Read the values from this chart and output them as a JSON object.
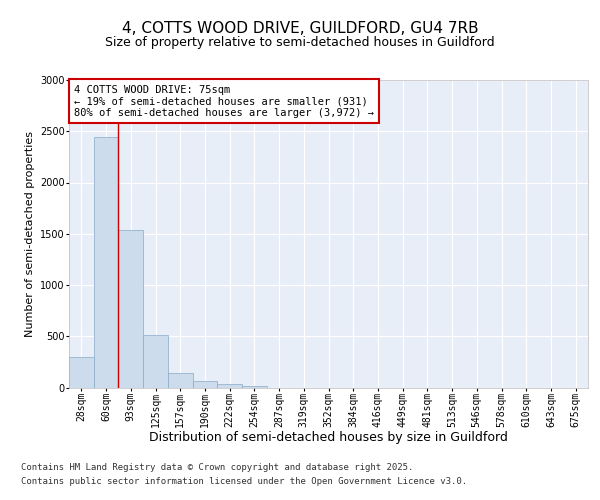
{
  "title_line1": "4, COTTS WOOD DRIVE, GUILDFORD, GU4 7RB",
  "title_line2": "Size of property relative to semi-detached houses in Guildford",
  "xlabel": "Distribution of semi-detached houses by size in Guildford",
  "ylabel": "Number of semi-detached properties",
  "categories": [
    "28sqm",
    "60sqm",
    "93sqm",
    "125sqm",
    "157sqm",
    "190sqm",
    "222sqm",
    "254sqm",
    "287sqm",
    "319sqm",
    "352sqm",
    "384sqm",
    "416sqm",
    "449sqm",
    "481sqm",
    "513sqm",
    "546sqm",
    "578sqm",
    "610sqm",
    "643sqm",
    "675sqm"
  ],
  "values": [
    300,
    2440,
    1540,
    510,
    140,
    60,
    30,
    10,
    0,
    0,
    0,
    0,
    0,
    0,
    0,
    0,
    0,
    0,
    0,
    0,
    0
  ],
  "bar_color": "#cddcec",
  "bar_edge_color": "#8aaac8",
  "vline_x": 1.5,
  "vline_color": "#cc0000",
  "annotation_text": "4 COTTS WOOD DRIVE: 75sqm\n← 19% of semi-detached houses are smaller (931)\n80% of semi-detached houses are larger (3,972) →",
  "annotation_box_facecolor": "white",
  "annotation_box_edgecolor": "#cc0000",
  "ylim": [
    0,
    3000
  ],
  "yticks": [
    0,
    500,
    1000,
    1500,
    2000,
    2500,
    3000
  ],
  "fig_facecolor": "#ffffff",
  "plot_facecolor": "#e8eef8",
  "footer_line1": "Contains HM Land Registry data © Crown copyright and database right 2025.",
  "footer_line2": "Contains public sector information licensed under the Open Government Licence v3.0.",
  "title_fontsize": 11,
  "subtitle_fontsize": 9,
  "xlabel_fontsize": 9,
  "ylabel_fontsize": 8,
  "tick_fontsize": 7,
  "annot_fontsize": 7.5,
  "footer_fontsize": 6.5
}
